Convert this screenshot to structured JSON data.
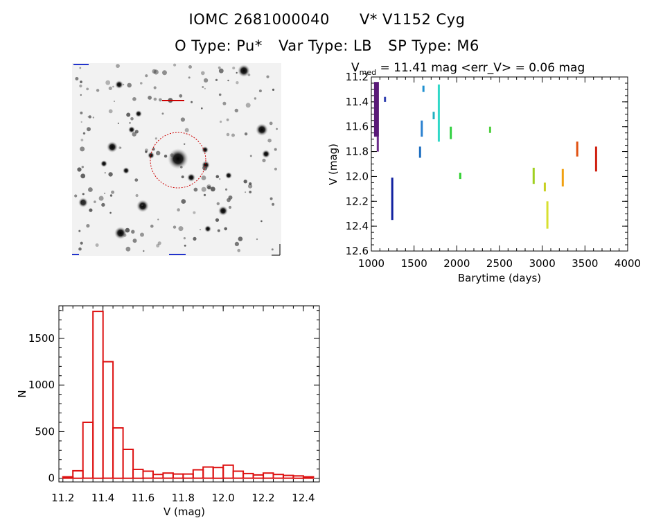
{
  "header": {
    "line1": [
      "IOMC 2681000040",
      "V* V1152 Cyg"
    ],
    "line2": [
      "O Type: Pu*",
      "Var Type: LB",
      "SP Type: M6"
    ]
  },
  "finder": {
    "circle_color": "#cc0000",
    "label_color": "#2233cc"
  },
  "chart_data": [
    {
      "type": "scatter",
      "title_prefix": "V",
      "title_sub": "med",
      "title_rest": " = 11.41 mag <err_V> = 0.06 mag",
      "xlabel": "Barytime (days)",
      "ylabel": "V (mag)",
      "xlim": [
        1000,
        4000
      ],
      "ylim": [
        12.6,
        11.2
      ],
      "xticks": [
        1000,
        1500,
        2000,
        2500,
        3000,
        3500,
        4000
      ],
      "yticks": [
        "11.2",
        "11.4",
        "11.6",
        "11.8",
        "12.0",
        "12.2",
        "12.4",
        "12.6"
      ],
      "series": [
        {
          "x": 1060,
          "ymin": 11.24,
          "ymax": 11.68,
          "color": "#5a1a78"
        },
        {
          "x": 1075,
          "ymin": 11.68,
          "ymax": 11.8,
          "color": "#6a2a8a"
        },
        {
          "x": 1160,
          "ymin": 11.36,
          "ymax": 11.4,
          "color": "#3040b0"
        },
        {
          "x": 1245,
          "ymin": 12.01,
          "ymax": 12.35,
          "color": "#1020a0"
        },
        {
          "x": 1570,
          "ymin": 11.76,
          "ymax": 11.85,
          "color": "#1f6fc0"
        },
        {
          "x": 1590,
          "ymin": 11.55,
          "ymax": 11.68,
          "color": "#2a80d0"
        },
        {
          "x": 1610,
          "ymin": 11.27,
          "ymax": 11.32,
          "color": "#1f90d0"
        },
        {
          "x": 1730,
          "ymin": 11.48,
          "ymax": 11.54,
          "color": "#20b0c0"
        },
        {
          "x": 1790,
          "ymin": 11.26,
          "ymax": 11.72,
          "color": "#30d8c8"
        },
        {
          "x": 1930,
          "ymin": 11.6,
          "ymax": 11.7,
          "color": "#30d040"
        },
        {
          "x": 2040,
          "ymin": 11.97,
          "ymax": 12.02,
          "color": "#30d030"
        },
        {
          "x": 2390,
          "ymin": 11.6,
          "ymax": 11.65,
          "color": "#50d040"
        },
        {
          "x": 2900,
          "ymin": 11.93,
          "ymax": 12.06,
          "color": "#a0d020"
        },
        {
          "x": 3030,
          "ymin": 12.05,
          "ymax": 12.12,
          "color": "#c8d020"
        },
        {
          "x": 3060,
          "ymin": 12.2,
          "ymax": 12.42,
          "color": "#d8e030"
        },
        {
          "x": 3240,
          "ymin": 11.94,
          "ymax": 12.08,
          "color": "#f0a010"
        },
        {
          "x": 3410,
          "ymin": 11.72,
          "ymax": 11.84,
          "color": "#e05010"
        },
        {
          "x": 3630,
          "ymin": 11.76,
          "ymax": 11.96,
          "color": "#d02010"
        }
      ]
    },
    {
      "type": "bar",
      "xlabel": "V (mag)",
      "ylabel": "N",
      "xlim": [
        11.18,
        12.48
      ],
      "ylim": [
        -40,
        1850
      ],
      "xticks": [
        "11.2",
        "11.4",
        "11.6",
        "11.8",
        "12.0",
        "12.2",
        "12.4"
      ],
      "yticks": [
        "0",
        "500",
        "1000",
        "1500"
      ],
      "bin_width": 0.05,
      "bin_starts": [
        11.2,
        11.25,
        11.3,
        11.35,
        11.4,
        11.45,
        11.5,
        11.55,
        11.6,
        11.65,
        11.7,
        11.75,
        11.8,
        11.85,
        11.9,
        11.95,
        12.0,
        12.05,
        12.1,
        12.15,
        12.2,
        12.25,
        12.3,
        12.35,
        12.4
      ],
      "values": [
        15,
        80,
        600,
        1790,
        1250,
        540,
        310,
        95,
        75,
        40,
        55,
        45,
        45,
        90,
        120,
        115,
        140,
        75,
        50,
        35,
        55,
        40,
        30,
        25,
        15
      ],
      "color": "#dd1111"
    }
  ]
}
